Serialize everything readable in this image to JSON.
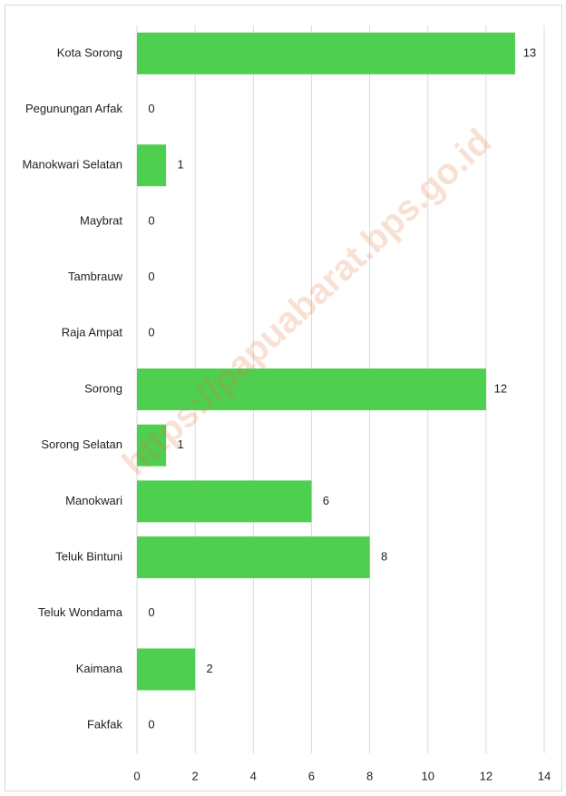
{
  "chart_data": {
    "type": "bar",
    "orientation": "horizontal",
    "categories": [
      "Kota Sorong",
      "Pegunungan Arfak",
      "Manokwari Selatan",
      "Maybrat",
      "Tambrauw",
      "Raja Ampat",
      "Sorong",
      "Sorong Selatan",
      "Manokwari",
      "Teluk Bintuni",
      "Teluk Wondama",
      "Kaimana",
      "Fakfak"
    ],
    "values": [
      13,
      0,
      1,
      0,
      0,
      0,
      12,
      1,
      6,
      8,
      0,
      2,
      0
    ],
    "color": "#4ecf50",
    "xlim": [
      0,
      14
    ],
    "xticks": [
      0,
      2,
      4,
      6,
      8,
      10,
      12,
      14
    ],
    "grid": true,
    "watermark": "https://papuabarat.bps.go.id"
  }
}
